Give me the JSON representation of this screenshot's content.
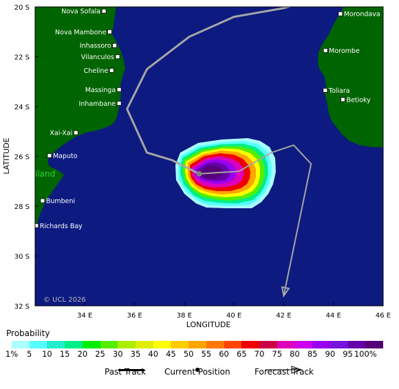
{
  "map": {
    "lon_range": [
      32,
      46
    ],
    "lat_range": [
      -20,
      -32
    ],
    "colors": {
      "ocean": "#0d1a7f",
      "land": "#006400",
      "track": "#a6a6a6",
      "forecast_track": "#a6a6a6",
      "current_position": "#808080"
    },
    "x_ticks": [
      "34 E",
      "36 E",
      "38 E",
      "40 E",
      "42 E",
      "44 E",
      "46 E"
    ],
    "y_ticks": [
      "20 S",
      "22 S",
      "24 S",
      "26 S",
      "28 S",
      "30 S",
      "32 S"
    ],
    "x_axis_title": "LONGITUDE",
    "y_axis_title": "LATITUDE",
    "copyright": "© UCL 2026",
    "region_label": "iland",
    "cities": [
      {
        "name": "Nova Sofala",
        "lon": 34.77,
        "lat": -20.17,
        "side": "left"
      },
      {
        "name": "Nova Mambone",
        "lon": 35.0,
        "lat": -21.0,
        "side": "left"
      },
      {
        "name": "Inhassoro",
        "lon": 35.2,
        "lat": -21.55,
        "side": "left"
      },
      {
        "name": "Vilanculos",
        "lon": 35.32,
        "lat": -22.0,
        "side": "left"
      },
      {
        "name": "Cheline",
        "lon": 35.08,
        "lat": -22.55,
        "side": "left"
      },
      {
        "name": "Massinga",
        "lon": 35.38,
        "lat": -23.32,
        "side": "left"
      },
      {
        "name": "Inhambane",
        "lon": 35.38,
        "lat": -23.87,
        "side": "left"
      },
      {
        "name": "Xai-Xai",
        "lon": 33.64,
        "lat": -25.05,
        "side": "left"
      },
      {
        "name": "Maputo",
        "lon": 32.58,
        "lat": -25.97,
        "side": "right"
      },
      {
        "name": "Bumbeni",
        "lon": 32.3,
        "lat": -27.78,
        "side": "right"
      },
      {
        "name": "Richards Bay",
        "lon": 32.05,
        "lat": -28.78,
        "side": "right"
      },
      {
        "name": "Morondava",
        "lon": 44.28,
        "lat": -20.28,
        "side": "right"
      },
      {
        "name": "Morombe",
        "lon": 43.68,
        "lat": -21.75,
        "side": "right"
      },
      {
        "name": "Toliara",
        "lon": 43.67,
        "lat": -23.35,
        "side": "right"
      },
      {
        "name": "Betioky",
        "lon": 44.38,
        "lat": -23.72,
        "side": "right"
      }
    ],
    "past_track": [
      [
        42.55,
        -19.9
      ],
      [
        42.0,
        -20.05
      ],
      [
        40.0,
        -20.4
      ],
      [
        38.2,
        -21.2
      ],
      [
        36.5,
        -22.5
      ],
      [
        35.7,
        -24.1
      ],
      [
        36.5,
        -25.85
      ],
      [
        37.5,
        -26.15
      ],
      [
        38.6,
        -26.7
      ]
    ],
    "current_position": [
      38.6,
      -26.7
    ],
    "forecast_track": [
      [
        38.6,
        -26.7
      ],
      [
        40.2,
        -26.6
      ],
      [
        41.5,
        -25.85
      ],
      [
        42.4,
        -25.55
      ],
      [
        43.1,
        -26.3
      ],
      [
        42.0,
        -31.6
      ]
    ]
  },
  "legend": {
    "title": "Probability",
    "colors": [
      "#aaffff",
      "#55ffff",
      "#22eecc",
      "#00ee88",
      "#00ee00",
      "#55ee00",
      "#aaee00",
      "#ddee00",
      "#ffff00",
      "#ffcc00",
      "#ffa500",
      "#ff7700",
      "#ff4400",
      "#ee0000",
      "#cc0044",
      "#dd00bb",
      "#cc00ee",
      "#9900ee",
      "#7711dd",
      "#6600aa",
      "#550077"
    ],
    "tick_labels": [
      "1%",
      "5",
      "10",
      "15",
      "20",
      "25",
      "30",
      "35",
      "40",
      "45",
      "50",
      "55",
      "60",
      "65",
      "70",
      "75",
      "80",
      "85",
      "90",
      "95",
      "100%"
    ],
    "past_track_label": "Past Track",
    "current_position_label": "Current Position",
    "forecast_track_label": "Forecast Track"
  }
}
